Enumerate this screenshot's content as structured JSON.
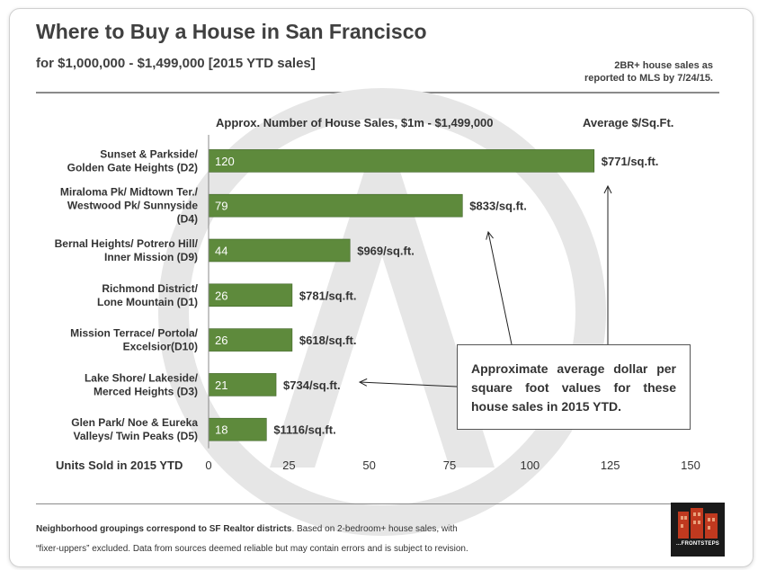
{
  "header": {
    "title": "Where to Buy a House in San Francisco",
    "subtitle": "for $1,000,000 - $1,499,000 [2015 YTD sales]",
    "note_line1": "2BR+ house sales  as",
    "note_line2": "reported to MLS by 7/24/15."
  },
  "callout": {
    "text": "Approximate average dollar per square foot values for these house sales in 2015 YTD."
  },
  "footer": {
    "bold": "Neighborhood groupings correspond to SF Realtor districts",
    "line1_rest": ". Based on 2-bedroom+ house sales, with",
    "line2": "“fixer-uppers” excluded. Data from sources deemed reliable but may contain errors and is subject to revision."
  },
  "logo": {
    "text": "...FRONTSTEPS"
  },
  "colors": {
    "bar": "#5e8a3c",
    "bar_border": "#3f6427",
    "watermark": "#e6e6e6"
  },
  "chart_data": {
    "type": "bar",
    "orientation": "horizontal",
    "title": "Approx. Number of House Sales, $1m - $1,499,000",
    "secondary_header": "Average  $/Sq.Ft.",
    "xlabel": "Units Sold in 2015 YTD",
    "xlim": [
      0,
      150
    ],
    "xticks": [
      "0",
      "25",
      "50",
      "75",
      "100",
      "125",
      "150"
    ],
    "tick_values": [
      0,
      25,
      50,
      75,
      100,
      125,
      150
    ],
    "grid": false,
    "categories": [
      {
        "line1": "Sunset & Parkside/",
        "line2": "Golden Gate Heights (D2)"
      },
      {
        "line1": "Miraloma Pk/ Midtown Ter./",
        "line2": "Westwood Pk/ Sunnyside",
        "line3": "(D4)"
      },
      {
        "line1": "Bernal Heights/ Potrero Hill/",
        "line2": "Inner Mission (D9)"
      },
      {
        "line1": "Richmond District/",
        "line2": "Lone Mountain (D1)"
      },
      {
        "line1": "Mission Terrace/ Portola/",
        "line2": "Excelsior(D10)"
      },
      {
        "line1": "Lake Shore/ Lakeside/",
        "line2": "Merced Heights (D3)"
      },
      {
        "line1": "Glen Park/ Noe & Eureka",
        "line2": "Valleys/ Twin Peaks (D5)"
      }
    ],
    "values": [
      120,
      79,
      44,
      26,
      26,
      21,
      18
    ],
    "value_labels": [
      "120",
      "79",
      "44",
      "26",
      "26",
      "21",
      "18"
    ],
    "price_per_sqft": [
      "$771/sq.ft.",
      "$833/sq.ft.",
      "$969/sq.ft.",
      "$781/sq.ft.",
      "$618/sq.ft.",
      "$734/sq.ft.",
      "$1116/sq.ft."
    ]
  }
}
